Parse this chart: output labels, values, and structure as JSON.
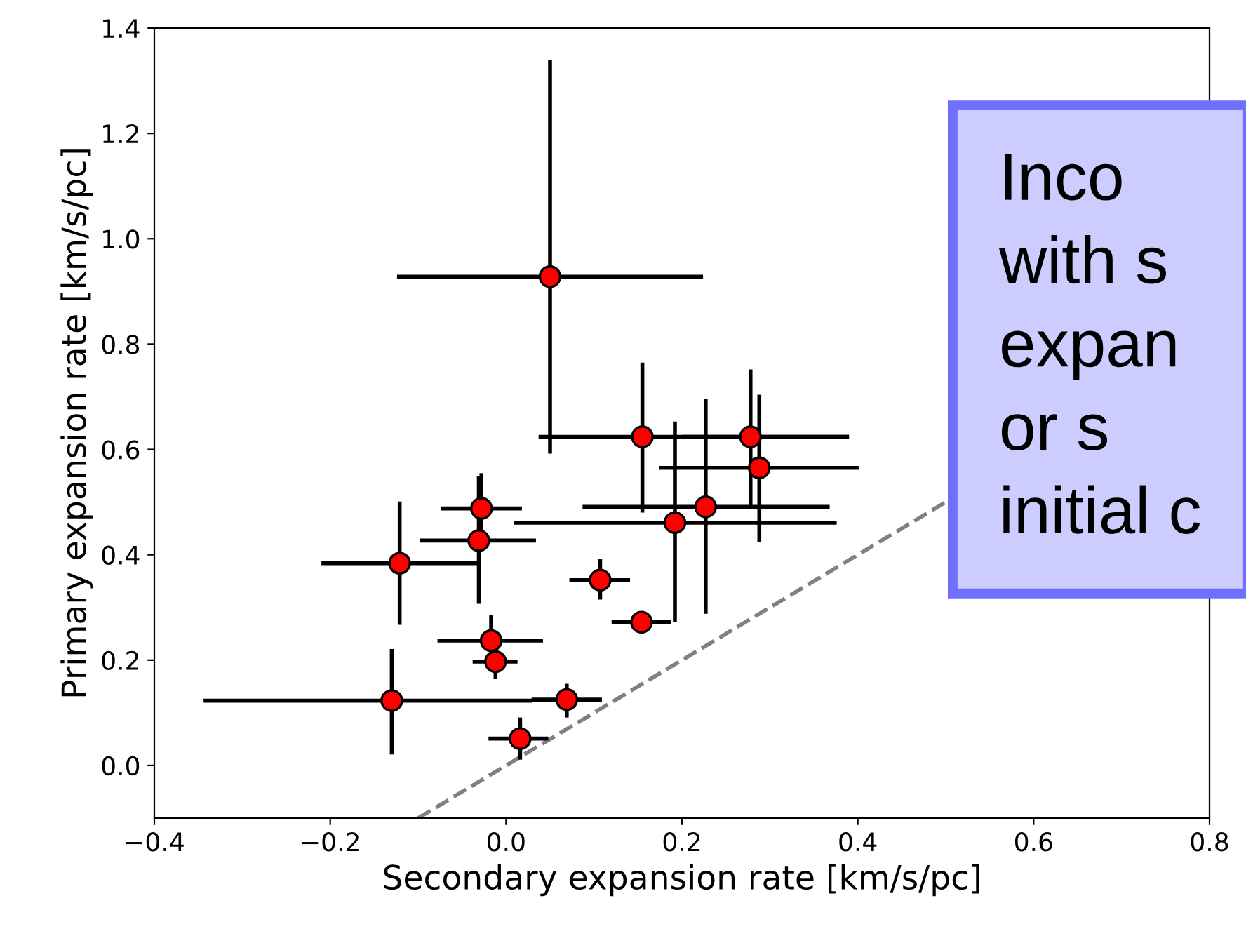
{
  "chart_data": {
    "type": "scatter",
    "xlabel": "Secondary expansion rate [km/s/pc]",
    "ylabel": "Primary expansion rate [km/s/pc]",
    "xlim": [
      -0.4,
      0.8
    ],
    "ylim": [
      -0.1,
      1.4
    ],
    "xticks": [
      {
        "value": -0.4,
        "label": "−0.4"
      },
      {
        "value": -0.2,
        "label": "−0.2"
      },
      {
        "value": 0,
        "label": "0.0"
      },
      {
        "value": 0.2,
        "label": "0.2"
      },
      {
        "value": 0.4,
        "label": "0.4"
      },
      {
        "value": 0.6,
        "label": "0.6"
      },
      {
        "value": 0.8,
        "label": "0.8"
      }
    ],
    "yticks": [
      {
        "value": 0,
        "label": "0.0"
      },
      {
        "value": 0.2,
        "label": "0.2"
      },
      {
        "value": 0.4,
        "label": "0.4"
      },
      {
        "value": 0.6,
        "label": "0.6"
      },
      {
        "value": 0.8,
        "label": "0.8"
      },
      {
        "value": 1.0,
        "label": "1.0"
      },
      {
        "value": 1.2,
        "label": "1.2"
      },
      {
        "value": 1.4,
        "label": "1.4"
      }
    ],
    "grid": false,
    "series": [
      {
        "type": "line",
        "color": "#808080",
        "line_style": "dashed",
        "marker": "none",
        "x": [
          -0.1,
          0.5
        ],
        "values": [
          -0.1,
          0.5
        ]
      },
      {
        "color": "#ff0000",
        "marker": "circle",
        "x": [
          0.05,
          0.155,
          0.278,
          0.288,
          0.227,
          0.192,
          -0.028,
          -0.031,
          -0.121,
          0.107,
          0.154,
          -0.017,
          -0.012,
          -0.13,
          0.069,
          0.016
        ],
        "values": [
          0.928,
          0.624,
          0.624,
          0.565,
          0.491,
          0.461,
          0.488,
          0.427,
          0.384,
          0.352,
          0.272,
          0.237,
          0.197,
          0.123,
          0.125,
          0.051
        ],
        "xerrors": [
          [
            -0.124,
            0.224
          ],
          [
            0.037,
            0.39
          ],
          [
            0.2,
            0.39
          ],
          [
            0.174,
            0.401
          ],
          [
            0.087,
            0.368
          ],
          [
            0.009,
            0.376
          ],
          [
            -0.074,
            0.018
          ],
          [
            -0.098,
            0.034
          ],
          [
            -0.21,
            -0.031
          ],
          [
            0.072,
            0.141
          ],
          [
            0.12,
            0.188
          ],
          [
            -0.078,
            0.042
          ],
          [
            -0.038,
            0.013
          ],
          [
            -0.344,
            0.03
          ],
          [
            0.029,
            0.109
          ],
          [
            -0.02,
            0.048
          ]
        ],
        "errors": [
          [
            0.592,
            1.339
          ],
          [
            0.48,
            0.765
          ],
          [
            0.493,
            0.752
          ],
          [
            0.424,
            0.704
          ],
          [
            0.288,
            0.696
          ],
          [
            0.272,
            0.653
          ],
          [
            0.42,
            0.555
          ],
          [
            0.307,
            0.55
          ],
          [
            0.267,
            0.501
          ],
          [
            0.315,
            0.392
          ],
          [
            0.255,
            0.29
          ],
          [
            0.2,
            0.285
          ],
          [
            0.165,
            0.23
          ],
          [
            0.021,
            0.221
          ],
          [
            0.091,
            0.155
          ],
          [
            0.011,
            0.091
          ]
        ]
      }
    ],
    "annotations": [
      "Inco",
      "with s",
      "expan",
      "or s",
      "initial c"
    ]
  }
}
